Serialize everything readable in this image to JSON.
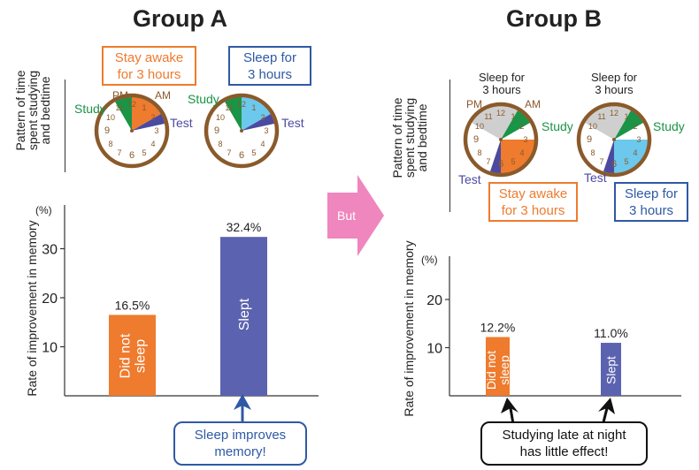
{
  "groupA": {
    "title": "Group A",
    "pattern_label": [
      "Pattern of time",
      "spent studying",
      "and bedtime"
    ],
    "clock_labels": {
      "pm": "PM",
      "am": "AM",
      "study": "Study",
      "test": "Test"
    },
    "clock1_callout": [
      "Stay awake",
      "for 3 hours"
    ],
    "clock2_callout": [
      "Sleep for",
      "3 hours"
    ],
    "clock2_study": "Study",
    "clock2_test": "Test",
    "bottom_callout": [
      "Sleep improves",
      "memory!"
    ]
  },
  "groupB": {
    "title": "Group B",
    "pattern_label": [
      "Pattern of time",
      "spent studying",
      "and bedtime"
    ],
    "clock1_top": [
      "Sleep for",
      "3 hours"
    ],
    "clock2_top": [
      "Sleep for",
      "3 hours"
    ],
    "clock_labels": {
      "pm": "PM",
      "am": "AM",
      "study": "Study",
      "test": "Test"
    },
    "clock2_study": "Study",
    "clock2_test": "Test",
    "clock1_callout": [
      "Stay awake",
      "for 3 hours"
    ],
    "clock2_callout": [
      "Sleep for",
      "3 hours"
    ],
    "bottom_callout": [
      "Studying late at night",
      "has little effect!"
    ]
  },
  "arrow_label": "But",
  "colors": {
    "orange": "#ee7b2e",
    "blue_bar": "#5b63b0",
    "green": "#1a9446",
    "sky": "#6cc8ec",
    "gray": "#cfcfcf",
    "purple": "#4b4aa0",
    "clock_rim": "#8a5a2b",
    "pink_arrow": "#ef86be",
    "callout_blue": "#2f59a6"
  },
  "chart_data": [
    {
      "type": "bar",
      "unit": "(%)",
      "ylabel": "Rate of improvement in memory",
      "ylim": [
        0,
        38
      ],
      "yticks": [
        10,
        20,
        30
      ],
      "categories": [
        "Did not sleep",
        "Slept"
      ],
      "values": [
        16.5,
        32.4
      ],
      "value_labels": [
        "16.5%",
        "32.4%"
      ],
      "bar_colors": [
        "#ee7b2e",
        "#5b63b0"
      ]
    },
    {
      "type": "bar",
      "unit": "(%)",
      "ylabel": "Rate of improvement in memory",
      "ylim": [
        0,
        28
      ],
      "yticks": [
        10,
        20
      ],
      "categories": [
        "Did not sleep",
        "Slept"
      ],
      "values": [
        12.2,
        11.0
      ],
      "value_labels": [
        "12.2%",
        "11.0%"
      ],
      "bar_colors": [
        "#ee7b2e",
        "#5b63b0"
      ]
    }
  ]
}
